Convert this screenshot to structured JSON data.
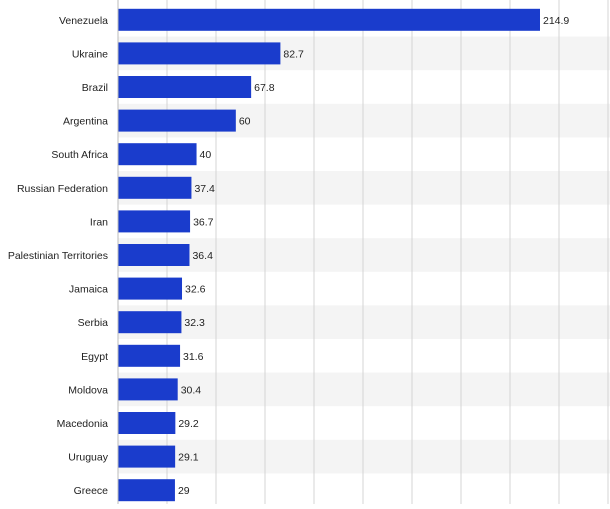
{
  "chart_data": {
    "type": "bar",
    "orientation": "horizontal",
    "title": "",
    "xlabel": "",
    "ylabel": "",
    "categories": [
      "Venezuela",
      "Ukraine",
      "Brazil",
      "Argentina",
      "South Africa",
      "Russian Federation",
      "Iran",
      "Palestinian Territories",
      "Jamaica",
      "Serbia",
      "Egypt",
      "Moldova",
      "Macedonia",
      "Uruguay",
      "Greece"
    ],
    "values": [
      214.9,
      82.7,
      67.8,
      60,
      40,
      37.4,
      36.7,
      36.4,
      32.6,
      32.3,
      31.6,
      30.4,
      29.2,
      29.1,
      29
    ],
    "value_labels": [
      "214.9",
      "82.7",
      "67.8",
      "60",
      "40",
      "37.4",
      "36.7",
      "36.4",
      "32.6",
      "32.3",
      "31.6",
      "30.4",
      "29.2",
      "29.1",
      "29"
    ],
    "xlim": [
      0,
      240
    ],
    "grid": true,
    "bar_color": "#1a3ccc",
    "stripe_color": "#f4f4f4",
    "grid_color": "#d4d4d4"
  }
}
